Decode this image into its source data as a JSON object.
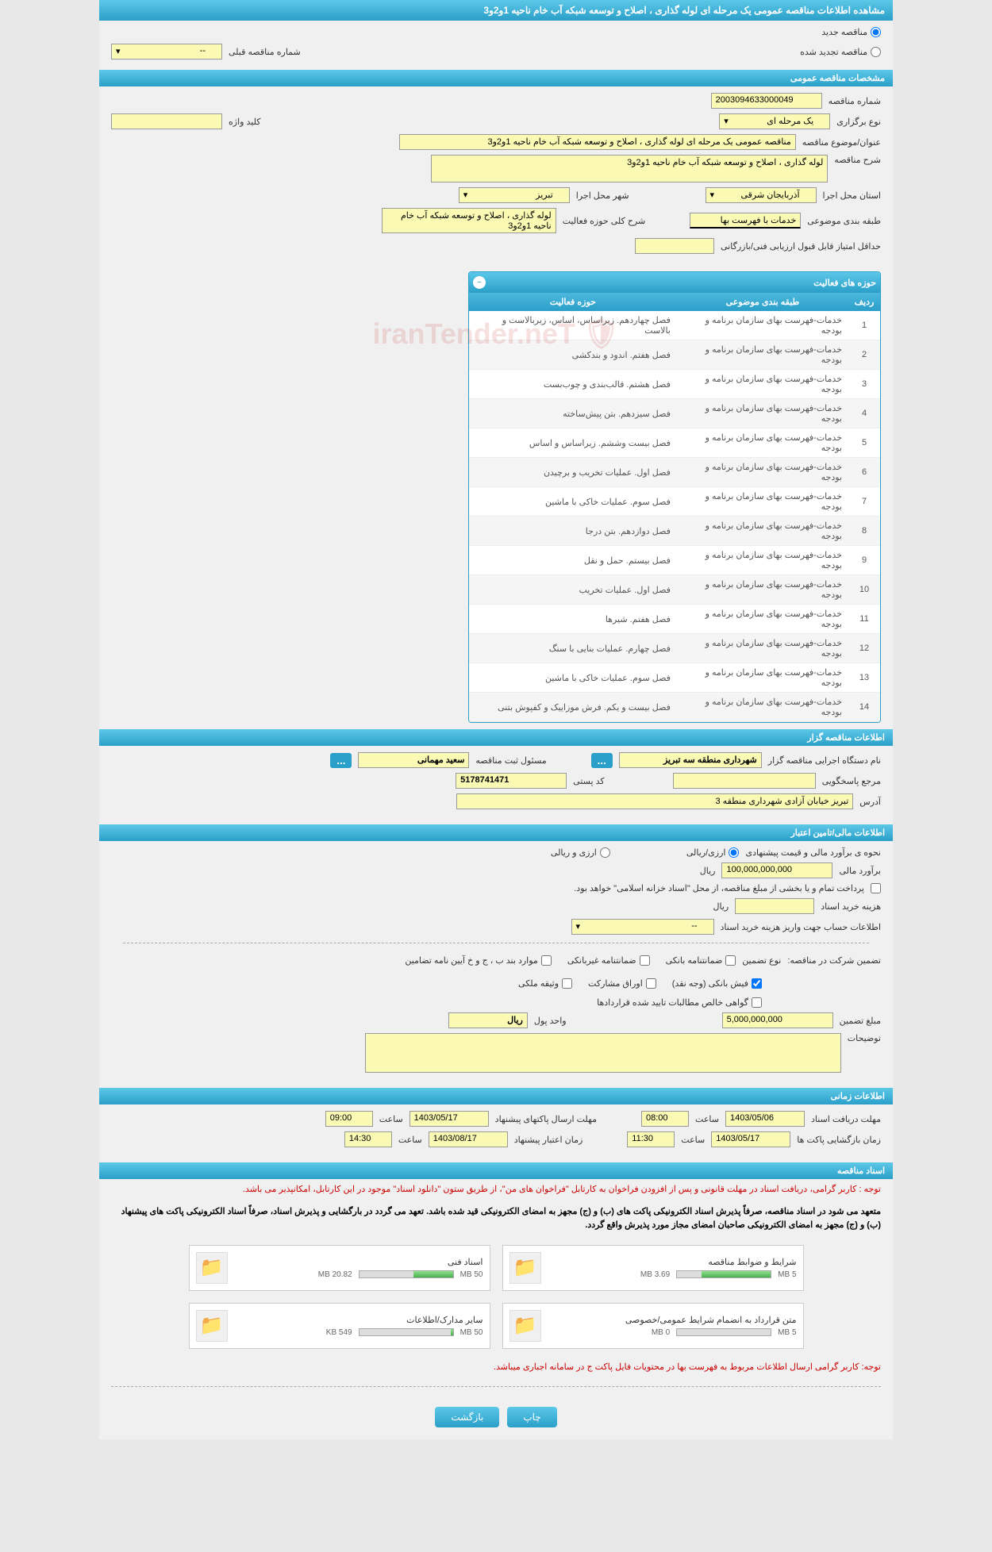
{
  "header": {
    "title": "مشاهده اطلاعات مناقصه عمومی یک مرحله ای لوله گذاری ، اصلاح و توسعه شبکه آب خام ناحیه 1و2و3"
  },
  "radio_options": {
    "new_tender": "مناقصه جدید",
    "renewed_tender": "مناقصه تجدید شده",
    "prev_tender_label": "شماره مناقصه قبلی",
    "prev_tender_value": "--"
  },
  "sections": {
    "general": "مشخصات مناقصه عمومی",
    "organizer": "اطلاعات مناقصه گزار",
    "financial": "اطلاعات مالی/تامین اعتبار",
    "timing": "اطلاعات زمانی",
    "documents": "اسناد مناقصه"
  },
  "general": {
    "tender_number_label": "شماره مناقصه",
    "tender_number": "2003094633000049",
    "holding_type_label": "نوع برگزاری",
    "holding_type": "یک مرحله ای",
    "keyword_label": "کلید واژه",
    "keyword": "",
    "subject_label": "عنوان/موضوع مناقصه",
    "subject": "مناقصه عمومی یک مرحله ای لوله گذاری ، اصلاح و توسعه شبکه آب خام ناحیه 1و2و3",
    "description_label": "شرح مناقصه",
    "description": "لوله گذاری ، اصلاح و توسعه شبکه آب خام ناحیه 1و2و3",
    "province_label": "استان محل اجرا",
    "province": "آذربایجان شرقی",
    "city_label": "شهر محل اجرا",
    "city": "تبریز",
    "category_label": "طبقه بندی موضوعی",
    "category": "خدمات با فهرست بها",
    "activity_scope_label": "شرح کلی حوزه فعالیت",
    "activity_scope": "لوله گذاری ، اصلاح و توسعه شبکه آب خام ناحیه 1و2و3",
    "min_score_label": "حداقل امتیاز قابل قبول ارزیابی فنی/بازرگانی",
    "min_score": ""
  },
  "activity_table": {
    "title": "حوزه های فعالیت",
    "col_num": "ردیف",
    "col_category": "طبقه بندی موضوعی",
    "col_activity": "حوزه فعالیت",
    "rows": [
      {
        "num": "1",
        "category": "خدمات-فهرست بهای سازمان برنامه و بودجه",
        "activity": "فصل چهاردهم. زیراساس، اساس، زیربالاست و بالاست"
      },
      {
        "num": "2",
        "category": "خدمات-فهرست بهای سازمان برنامه و بودجه",
        "activity": "فصل هفتم. اندود و بندکشی"
      },
      {
        "num": "3",
        "category": "خدمات-فهرست بهای سازمان برنامه و بودجه",
        "activity": "فصل هشتم. قالب‌بندی و چوب‌بست"
      },
      {
        "num": "4",
        "category": "خدمات-فهرست بهای سازمان برنامه و بودجه",
        "activity": "فصل سیزدهم. بتن پیش‌ساخته"
      },
      {
        "num": "5",
        "category": "خدمات-فهرست بهای سازمان برنامه و بودجه",
        "activity": "فصل بیست وششم. زیراساس و اساس"
      },
      {
        "num": "6",
        "category": "خدمات-فهرست بهای سازمان برنامه و بودجه",
        "activity": "فصل اول. عملیات تخریب و برچیدن"
      },
      {
        "num": "7",
        "category": "خدمات-فهرست بهای سازمان برنامه و بودجه",
        "activity": "فصل سوم. عملیات خاکی با ماشین"
      },
      {
        "num": "8",
        "category": "خدمات-فهرست بهای سازمان برنامه و بودجه",
        "activity": "فصل دوازدهم. بتن درجا"
      },
      {
        "num": "9",
        "category": "خدمات-فهرست بهای سازمان برنامه و بودجه",
        "activity": "فصل بیستم. حمل و نقل"
      },
      {
        "num": "10",
        "category": "خدمات-فهرست بهای سازمان برنامه و بودجه",
        "activity": "فصل اول. عملیات تخریب"
      },
      {
        "num": "11",
        "category": "خدمات-فهرست بهای سازمان برنامه و بودجه",
        "activity": "فصل هفتم. شیرها"
      },
      {
        "num": "12",
        "category": "خدمات-فهرست بهای سازمان برنامه و بودجه",
        "activity": "فصل چهارم. عملیات بنایی با سنگ"
      },
      {
        "num": "13",
        "category": "خدمات-فهرست بهای سازمان برنامه و بودجه",
        "activity": "فصل سوم. عملیات خاکی با ماشین"
      },
      {
        "num": "14",
        "category": "خدمات-فهرست بهای سازمان برنامه و بودجه",
        "activity": "فصل بیست و یکم. فرش موزاییک و کفپوش بتنی"
      }
    ]
  },
  "organizer": {
    "agency_label": "نام دستگاه اجرایی مناقصه گزار",
    "agency": "شهرداری منطقه سه تبریز",
    "registrar_label": "مسئول ثبت مناقصه",
    "registrar": "سعید مهمانی",
    "reference_label": "مرجع پاسخگویی",
    "reference": "",
    "postal_label": "کد پستی",
    "postal": "5178741471",
    "address_label": "آدرس",
    "address": "تبریز خیابان آزادی شهرداری منطقه 3"
  },
  "financial": {
    "estimate_type_label": "نحوه ی برآورد مالی و قیمت پیشنهادی",
    "option_rial": "ارزی/ریالی",
    "option_currency": "ارزی و ریالی",
    "estimate_label": "برآورد مالی",
    "estimate_value": "100,000,000,000",
    "currency": "ریال",
    "payment_note": "پرداخت تمام و یا بخشی از مبلغ مناقصه، از محل \"اسناد خزانه اسلامی\" خواهد بود.",
    "doc_cost_label": "هزینه خرید اسناد",
    "doc_cost_currency": "ریال",
    "account_info_label": "اطلاعات حساب جهت واریز هزینه خرید اسناد",
    "account_info": "--",
    "guarantee_label": "تضمین شرکت در مناقصه:",
    "guarantee_type_label": "نوع تضمین",
    "guarantee_options": {
      "bank_guarantee": "ضمانتنامه بانکی",
      "nonbank_guarantee": "ضمانتنامه غیربانکی",
      "bylaws": "موارد بند ب ، ج و خ آیین نامه تضامین",
      "bank_receipt": "فیش بانکی (وجه نقد)",
      "participation": "اوراق مشارکت",
      "property": "وثیقه ملکی",
      "certified_claims": "گواهی خالص مطالبات تایید شده قراردادها"
    },
    "guarantee_amount_label": "مبلغ تضمین",
    "guarantee_amount": "5,000,000,000",
    "unit_label": "واحد پول",
    "unit_value": "ریال",
    "notes_label": "توضیحات"
  },
  "timing": {
    "receive_deadline_label": "مهلت دریافت اسناد",
    "receive_deadline_date": "1403/05/06",
    "time_label": "ساعت",
    "receive_deadline_time": "08:00",
    "submit_deadline_label": "مهلت ارسال پاکتهای پیشنهاد",
    "submit_deadline_date": "1403/05/17",
    "submit_deadline_time": "09:00",
    "opening_label": "زمان بازگشایی پاکت ها",
    "opening_date": "1403/05/17",
    "opening_time": "11:30",
    "validity_label": "زمان اعتبار پیشنهاد",
    "validity_date": "1403/08/17",
    "validity_time": "14:30"
  },
  "documents": {
    "notice1": "توجه : کاربر گرامی، دریافت اسناد در مهلت قانونی و پس از افزودن فراخوان به کارتابل \"فراخوان های من\"، از طریق ستون \"دانلود اسناد\" موجود در این کارتابل، امکانپذیر می باشد.",
    "notice2": "متعهد می شود در اسناد مناقصه، صرفاً پذیرش اسناد الکترونیکی پاکت های (ب) و (ج) مجهز به امضای الکترونیکی قید شده باشد. تعهد می گردد در بارگشایی و پذیرش اسناد، صرفاً اسناد الکترونیکی پاکت های پیشنهاد (ب) و (ج) مجهز به امضای الکترونیکی صاحبان امضای مجاز مورد پذیرش واقع گردد.",
    "files": [
      {
        "name": "شرایط و ضوابط مناقصه",
        "size": "3.69 MB",
        "max": "5 MB",
        "progress": 74
      },
      {
        "name": "اسناد فنی",
        "size": "20.82 MB",
        "max": "50 MB",
        "progress": 42
      },
      {
        "name": "متن قرارداد به انضمام شرایط عمومی/خصوصی",
        "size": "0 MB",
        "max": "5 MB",
        "progress": 0
      },
      {
        "name": "سایر مدارک/اطلاعات",
        "size": "549 KB",
        "max": "50 MB",
        "progress": 2
      }
    ],
    "footer_notice": "توجه: کاربر گرامی ارسال اطلاعات مربوط به فهرست بها در محتویات فایل پاکت ج در سامانه اجباری میباشد."
  },
  "buttons": {
    "print": "چاپ",
    "back": "بازگشت"
  }
}
